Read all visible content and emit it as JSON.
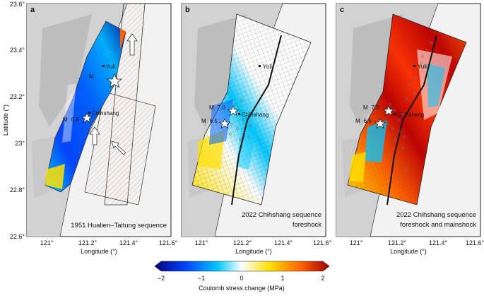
{
  "figure": {
    "y_axis_label": "Latitude (°)",
    "x_axis_label": "Longitude (°)",
    "lat_ticks": [
      "22.6°",
      "22.8°",
      "23°",
      "23.2°",
      "23.4°",
      "23.6°"
    ],
    "lon_ticks": [
      "121°",
      "121.2°",
      "121.4°",
      "121.6°"
    ],
    "panels": [
      {
        "letter": "a",
        "caption_lines": [
          "1951 Hualien–Taitung sequence"
        ],
        "places": [
          "Yuli",
          "Chihshang"
        ],
        "events": [
          "M",
          "6.6"
        ]
      },
      {
        "letter": "b",
        "caption_lines": [
          "2022 Chihshang sequence",
          "foreshock"
        ],
        "places": [
          "Yuli",
          "Chihshang"
        ],
        "events": [
          "M",
          "7.0",
          "6.5"
        ]
      },
      {
        "letter": "c",
        "caption_lines": [
          "2022 Chihshang sequence",
          "foreshock and mainshock"
        ],
        "places": [
          "Yuli",
          "Chihshang"
        ],
        "events": [
          "M",
          "7.0",
          "6.5"
        ]
      }
    ],
    "colorbar": {
      "ticks": [
        "−2",
        "−1",
        "0",
        "1",
        "2"
      ],
      "label": "Coulomb stress change (MPa)",
      "colors": [
        "#00007f",
        "#0044ff",
        "#00c8ff",
        "#ffffff",
        "#ffe000",
        "#ff6000",
        "#9a0000"
      ]
    }
  }
}
